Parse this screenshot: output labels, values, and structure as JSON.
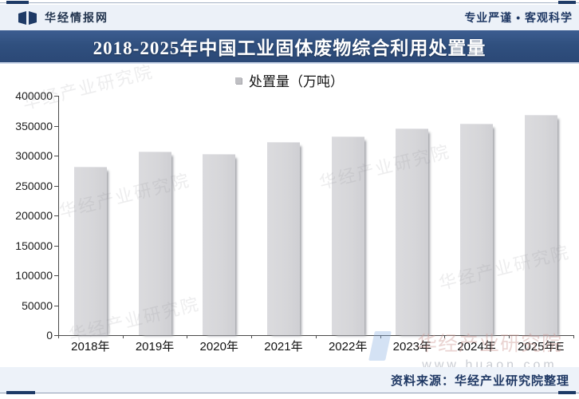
{
  "header": {
    "brand": "华经情报网",
    "slogan": "专业严谨 • 客观科学",
    "accent_color": "#1e3a66"
  },
  "title_bar": {
    "text": "2018-2025年中国工业固体废物综合利用处置量",
    "bg_color": "#30507f",
    "text_color": "#ffffff"
  },
  "chart_data": {
    "type": "bar",
    "title": "2018-2025年中国工业固体废物综合利用处置量",
    "legend": "处置量（万吨）",
    "legend_position": "top-center",
    "categories": [
      "2018年",
      "2019年",
      "2020年",
      "2021年",
      "2022年",
      "2023年",
      "2024年",
      "2025年E"
    ],
    "values": [
      281000,
      307000,
      303000,
      323000,
      332000,
      345000,
      353000,
      368000
    ],
    "unit": "万吨",
    "xlabel": "",
    "ylabel": "",
    "ylim": [
      0,
      400000
    ],
    "ytick_step": 50000,
    "yticks": [
      0,
      50000,
      100000,
      150000,
      200000,
      250000,
      300000,
      350000,
      400000
    ],
    "grid": false,
    "bar_color": "#d6d6d9"
  },
  "watermarks": {
    "diagonal_text": "华经产业研究院",
    "footer_text": "华经产业研究院",
    "footer_url": "www.huaon.com"
  },
  "footer": {
    "source": "资料来源：华经产业研究院整理"
  }
}
